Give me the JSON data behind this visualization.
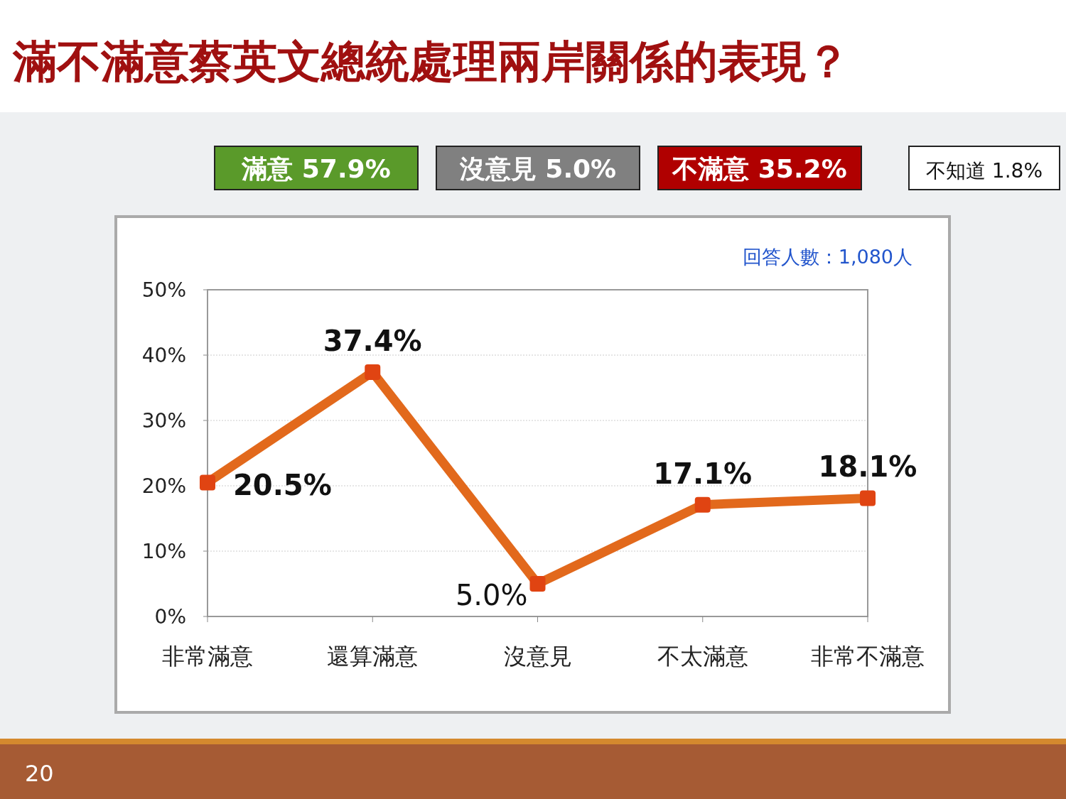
{
  "chart_data": {
    "type": "line",
    "title": "滿不滿意蔡英文總統處理兩岸關係的表現？",
    "categories": [
      "非常滿意",
      "還算滿意",
      "沒意見",
      "不太滿意",
      "非常不滿意"
    ],
    "values": [
      20.5,
      37.4,
      5.0,
      17.1,
      18.1
    ],
    "value_labels": [
      "20.5%",
      "37.4%",
      "5.0%",
      "17.1%",
      "18.1%"
    ],
    "color": "#e2691c",
    "marker": "square",
    "line_style": "solid",
    "grid": "y",
    "ylim": [
      0,
      50
    ],
    "yticks": [
      {
        "value": 0,
        "label": "0%"
      },
      {
        "value": 10,
        "label": "10%"
      },
      {
        "value": 20,
        "label": "20%"
      },
      {
        "value": 30,
        "label": "30%"
      },
      {
        "value": 40,
        "label": "40%"
      },
      {
        "value": 50,
        "label": "50%"
      }
    ],
    "annotations": [
      "滿意 57.9%",
      "沒意見 5.0%",
      "不滿意 35.2%",
      "不知道 1.8%",
      "回答人數：1,080人",
      "20"
    ]
  }
}
